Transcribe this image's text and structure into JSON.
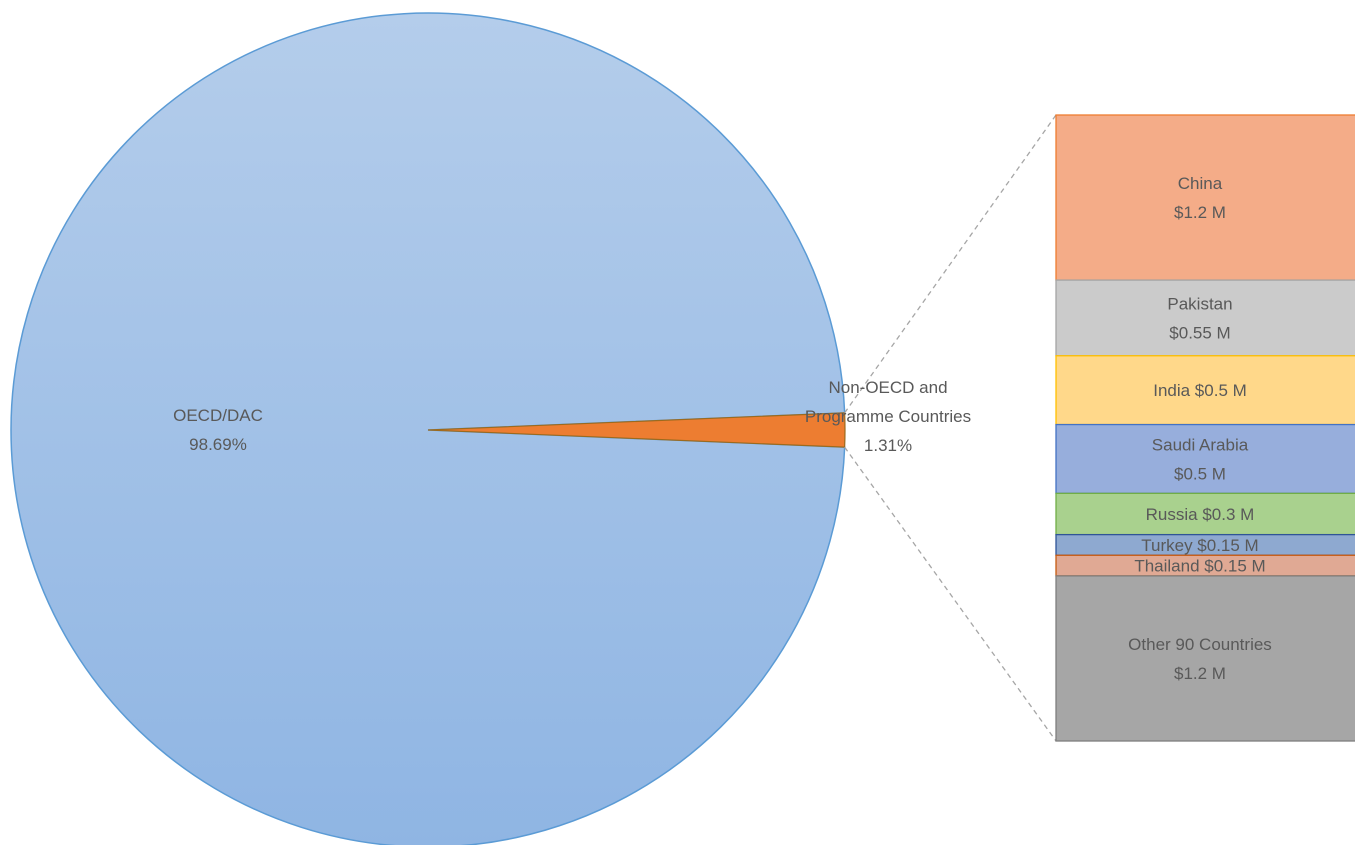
{
  "chart_data": {
    "type": "pie",
    "subtype": "bar-of-pie",
    "pie": {
      "slices": [
        {
          "label": "OECD/DAC",
          "value": 98.69,
          "value_label": "98.69%",
          "color": "#9DBFE6"
        },
        {
          "label": "Non-OECD and Programme Countries",
          "label_lines": [
            "Non-OECD and",
            "Programme Countries"
          ],
          "value": 1.31,
          "value_label": "1.31%",
          "color": "#ED7D31"
        }
      ]
    },
    "bar_breakdown": {
      "parent": "Non-OECD and Programme Countries",
      "unit": "$ M",
      "segments": [
        {
          "label": "China",
          "value": 1.2,
          "value_label": "$1.2 M",
          "text_lines": [
            "China",
            "$1.2 M"
          ],
          "fill": "#F4AC88",
          "stroke": "#ED7D31"
        },
        {
          "label": "Pakistan",
          "value": 0.55,
          "value_label": "$0.55 M",
          "text_lines": [
            "Pakistan",
            "$0.55 M"
          ],
          "fill": "#CBCBCB",
          "stroke": "#A5A5A5"
        },
        {
          "label": "India",
          "value": 0.5,
          "value_label": "$0.5 M",
          "text_lines": [
            "India $0.5 M"
          ],
          "fill": "#FFD88A",
          "stroke": "#FFC000"
        },
        {
          "label": "Saudi Arabia",
          "value": 0.5,
          "value_label": "$0.5 M",
          "text_lines": [
            "Saudi Arabia",
            "$0.5 M"
          ],
          "fill": "#97AEDC",
          "stroke": "#4472C4"
        },
        {
          "label": "Russia",
          "value": 0.3,
          "value_label": "$0.3 M",
          "text_lines": [
            "Russia $0.3 M"
          ],
          "fill": "#A9D18E",
          "stroke": "#70AD47"
        },
        {
          "label": "Turkey",
          "value": 0.15,
          "value_label": "$0.15 M",
          "text_lines": [
            "Turkey $0.15 M"
          ],
          "fill": "#8EA9D0",
          "stroke": "#2F5597"
        },
        {
          "label": "Thailand",
          "value": 0.15,
          "value_label": "$0.15 M",
          "text_lines": [
            "Thailand $0.15 M"
          ],
          "fill": "#E0A994",
          "stroke": "#C55A11"
        },
        {
          "label": "Other 90 Countries",
          "value": 1.2,
          "value_label": "$1.2 M",
          "text_lines": [
            "Other 90 Countries",
            "$1.2 M"
          ],
          "fill": "#A6A6A6",
          "stroke": "#7F7F7F"
        }
      ]
    },
    "connector_style": "dashed",
    "legend": "none"
  }
}
